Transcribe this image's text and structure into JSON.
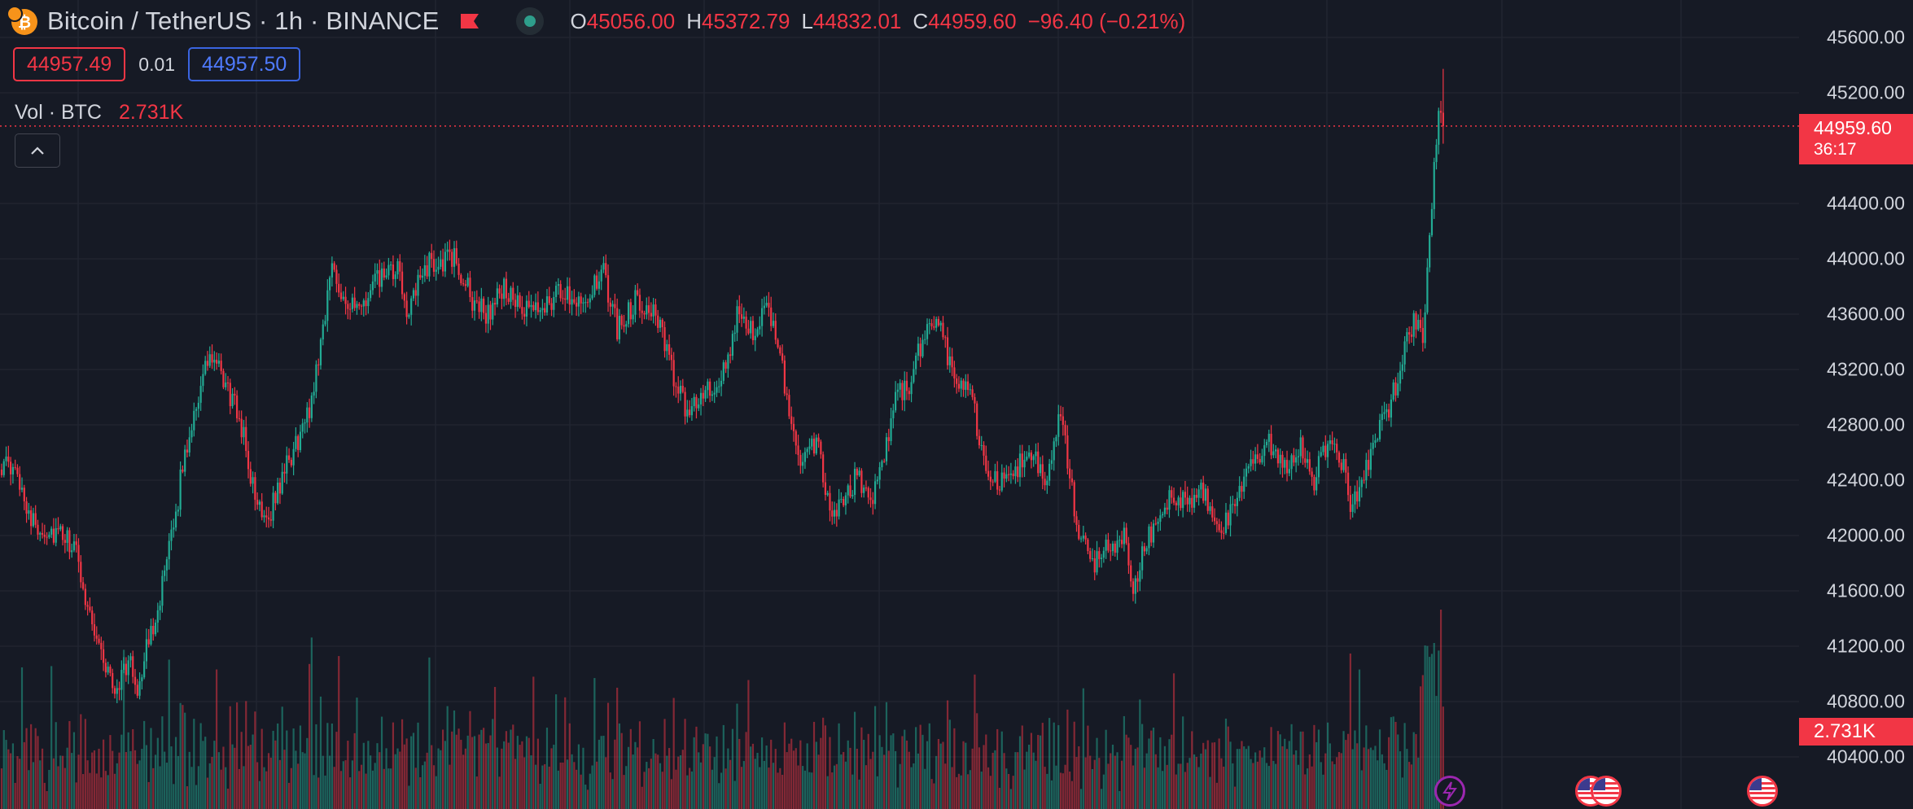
{
  "header": {
    "coin_icon_glyph": "₿",
    "title": "Bitcoin / TetherUS · 1h · BINANCE",
    "ohlc": {
      "open_label": "O",
      "open": "45056.00",
      "high_label": "H",
      "high": "45372.79",
      "low_label": "L",
      "low": "44832.01",
      "close_label": "C",
      "close": "44959.60",
      "change": "−96.40 (−0.21%)"
    }
  },
  "trade": {
    "sell_price": "44957.49",
    "spread": "0.01",
    "buy_price": "44957.50"
  },
  "volume_legend": {
    "name": "Vol · BTC",
    "value": "2.731K"
  },
  "axis": {
    "price_ticks": [
      "45600.00",
      "45200.00",
      "44400.00",
      "44000.00",
      "43600.00",
      "43200.00",
      "42800.00",
      "42400.00",
      "42000.00",
      "41600.00",
      "41200.00",
      "40800.00",
      "40400.00"
    ],
    "last_price": "44959.60",
    "countdown": "36:17",
    "volume_tag": "2.731K"
  },
  "markers": [
    "bolt-event",
    "us-flag-event",
    "us-flag-event"
  ],
  "colors": {
    "background": "#161a25",
    "up": "#22ab94",
    "down": "#f23645",
    "grid": "#232632",
    "text": "#d1d4dc",
    "accent_blue": "#3a64e0"
  },
  "chart_data": {
    "type": "candlestick",
    "symbol": "BTCUSDT",
    "interval": "1h",
    "price_range": [
      40300,
      45800
    ],
    "last_price": 44959.6,
    "waypoints": [
      [
        0,
        42520
      ],
      [
        8,
        42400
      ],
      [
        14,
        42080
      ],
      [
        25,
        42000
      ],
      [
        32,
        41920
      ],
      [
        38,
        41500
      ],
      [
        45,
        41100
      ],
      [
        50,
        40880
      ],
      [
        56,
        41100
      ],
      [
        60,
        40900
      ],
      [
        66,
        41300
      ],
      [
        72,
        41700
      ],
      [
        76,
        42050
      ],
      [
        80,
        42500
      ],
      [
        85,
        42900
      ],
      [
        92,
        43300
      ],
      [
        100,
        43050
      ],
      [
        106,
        42800
      ],
      [
        112,
        42250
      ],
      [
        118,
        42150
      ],
      [
        124,
        42420
      ],
      [
        130,
        42650
      ],
      [
        136,
        42900
      ],
      [
        140,
        43300
      ],
      [
        146,
        43950
      ],
      [
        152,
        43700
      ],
      [
        158,
        43600
      ],
      [
        166,
        43850
      ],
      [
        175,
        43900
      ],
      [
        180,
        43600
      ],
      [
        187,
        43950
      ],
      [
        200,
        44000
      ],
      [
        208,
        43700
      ],
      [
        215,
        43600
      ],
      [
        222,
        43800
      ],
      [
        230,
        43600
      ],
      [
        238,
        43650
      ],
      [
        246,
        43750
      ],
      [
        258,
        43720
      ],
      [
        266,
        43880
      ],
      [
        272,
        43500
      ],
      [
        280,
        43700
      ],
      [
        288,
        43650
      ],
      [
        296,
        43200
      ],
      [
        302,
        42900
      ],
      [
        308,
        43000
      ],
      [
        316,
        43050
      ],
      [
        320,
        43200
      ],
      [
        326,
        43650
      ],
      [
        332,
        43500
      ],
      [
        338,
        43600
      ],
      [
        344,
        43400
      ],
      [
        348,
        42800
      ],
      [
        354,
        42500
      ],
      [
        360,
        42700
      ],
      [
        366,
        42150
      ],
      [
        372,
        42200
      ],
      [
        378,
        42450
      ],
      [
        384,
        42250
      ],
      [
        392,
        42700
      ],
      [
        396,
        43050
      ],
      [
        402,
        43100
      ],
      [
        408,
        43500
      ],
      [
        414,
        43550
      ],
      [
        420,
        43200
      ],
      [
        428,
        43050
      ],
      [
        434,
        42550
      ],
      [
        440,
        42350
      ],
      [
        448,
        42500
      ],
      [
        456,
        42550
      ],
      [
        462,
        42400
      ],
      [
        468,
        42900
      ],
      [
        472,
        42400
      ],
      [
        476,
        42000
      ],
      [
        482,
        41800
      ],
      [
        488,
        41900
      ],
      [
        496,
        42000
      ],
      [
        500,
        41650
      ],
      [
        506,
        41950
      ],
      [
        512,
        42200
      ],
      [
        518,
        42300
      ],
      [
        524,
        42200
      ],
      [
        530,
        42350
      ],
      [
        536,
        42050
      ],
      [
        544,
        42150
      ],
      [
        552,
        42550
      ],
      [
        560,
        42650
      ],
      [
        566,
        42500
      ],
      [
        574,
        42650
      ],
      [
        580,
        42400
      ],
      [
        586,
        42700
      ],
      [
        592,
        42550
      ],
      [
        596,
        42250
      ],
      [
        602,
        42400
      ],
      [
        608,
        42750
      ],
      [
        614,
        42950
      ],
      [
        620,
        43400
      ],
      [
        624,
        43550
      ],
      [
        628,
        43450
      ],
      [
        631,
        44150
      ],
      [
        634,
        44900
      ],
      [
        636,
        45100
      ],
      [
        637,
        44959.6
      ]
    ],
    "volume_peak": "2.731K"
  }
}
